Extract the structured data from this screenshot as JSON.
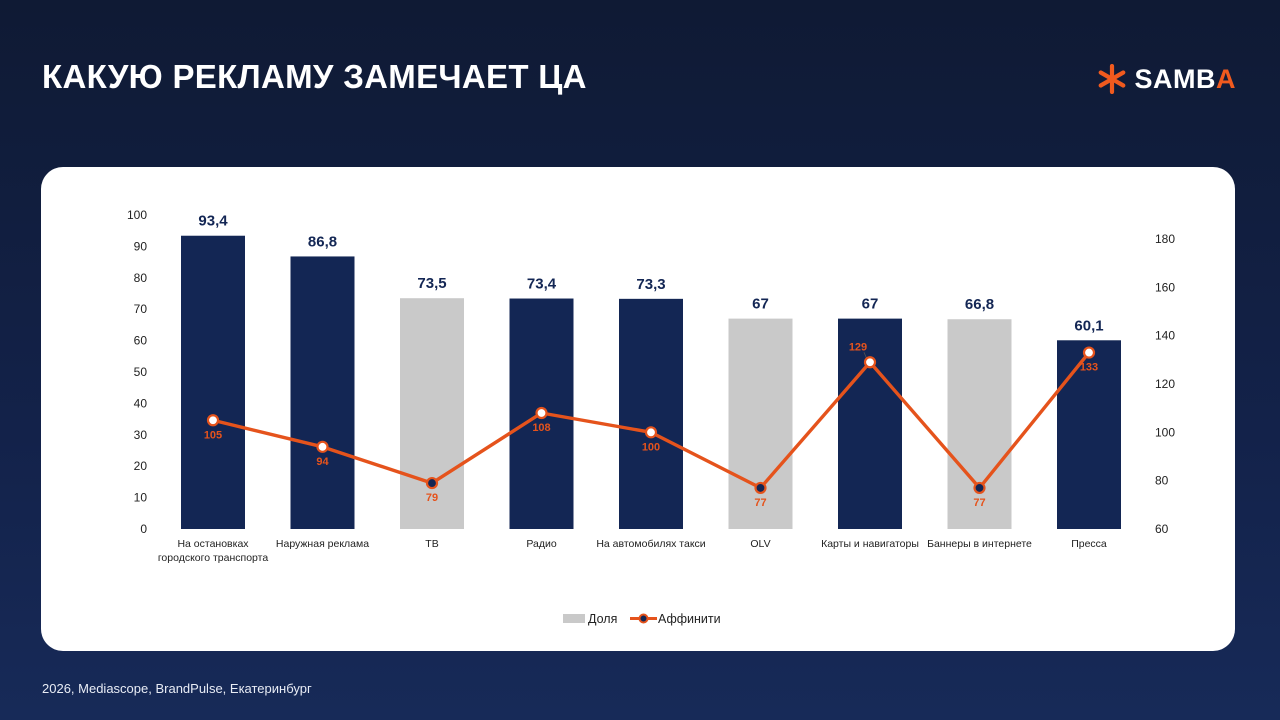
{
  "page": {
    "title": "КАКУЮ РЕКЛАМУ ЗАМЕЧАЕТ ЦА",
    "footer": "2026, Mediascope, BrandPulse, Екатеринбург"
  },
  "logo": {
    "text_main": "SAMB",
    "text_accent": "A",
    "icon": "asterisk-icon",
    "accent_color": "#f05a1e"
  },
  "chart_data": {
    "type": "bar",
    "categories": [
      "На остановках городского транспорта",
      "Наружная реклама",
      "ТВ",
      "Радио",
      "На автомобилях такси",
      "OLV",
      "Карты и навигаторы",
      "Баннеры в интернете",
      "Пресса"
    ],
    "category_lines": [
      [
        "На остановках",
        "городского транспорта"
      ],
      [
        "Наружная реклама"
      ],
      [
        "ТВ"
      ],
      [
        "Радио"
      ],
      [
        "На автомобилях такси"
      ],
      [
        "OLV"
      ],
      [
        "Карты и навигаторы"
      ],
      [
        "Баннеры в интернете"
      ],
      [
        "Пресса"
      ]
    ],
    "series": [
      {
        "name": "Доля",
        "type": "bar",
        "axis": "left",
        "values": [
          93.4,
          86.8,
          73.5,
          73.4,
          73.3,
          67,
          67,
          66.8,
          60.1
        ],
        "value_labels": [
          "93,4",
          "86,8",
          "73,5",
          "73,4",
          "73,3",
          "67",
          "67",
          "66,8",
          "60,1"
        ],
        "highlighted": [
          true,
          true,
          false,
          true,
          true,
          false,
          true,
          false,
          true
        ]
      },
      {
        "name": "Аффинити",
        "type": "line",
        "axis": "right",
        "values": [
          105,
          94,
          79,
          108,
          100,
          77,
          129,
          77,
          133
        ],
        "value_labels": [
          "105",
          "94",
          "79",
          "108",
          "100",
          "77",
          "129",
          "77",
          "133"
        ],
        "filled_marker": [
          false,
          false,
          true,
          false,
          false,
          true,
          false,
          true,
          false
        ]
      }
    ],
    "y_left": {
      "min": 0,
      "max": 100,
      "step": 10,
      "ticks": [
        "0",
        "10",
        "20",
        "30",
        "40",
        "50",
        "60",
        "70",
        "80",
        "90",
        "100"
      ]
    },
    "y_right": {
      "min": 60,
      "max": 190,
      "step": 20,
      "ticks": [
        "60",
        "80",
        "100",
        "120",
        "140",
        "160",
        "180"
      ]
    },
    "legend": {
      "placement": "bottom-center",
      "items": [
        "Доля",
        "Аффинити"
      ]
    },
    "grid": false,
    "colors": {
      "bar_highlight": "#132654",
      "bar_muted": "#c9c9c9",
      "line": "#e5531c",
      "marker_dark": "#132654",
      "axis_text": "#222222",
      "value_text": "#132654"
    }
  }
}
